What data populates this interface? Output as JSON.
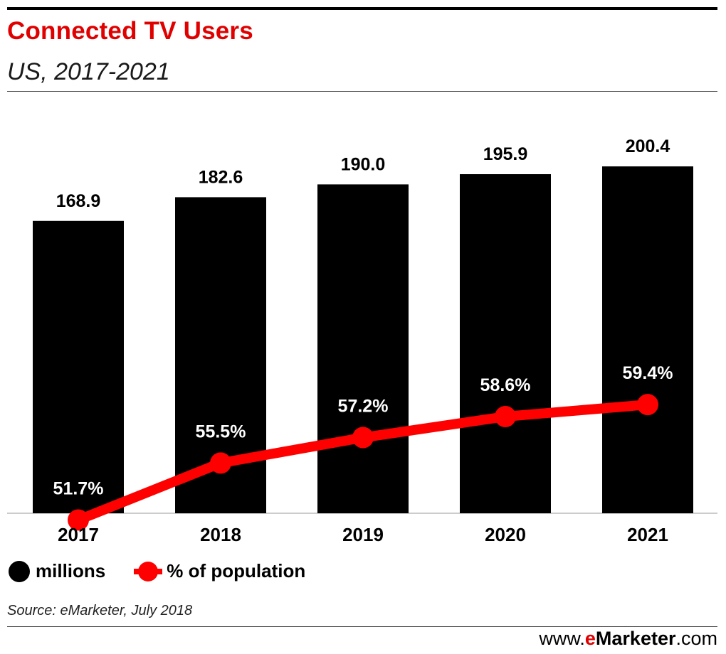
{
  "header": {
    "title": "Connected TV Users",
    "subtitle": "US, 2017-2021"
  },
  "chart_data": {
    "type": "bar",
    "title": "Connected TV Users",
    "subtitle": "US, 2017-2021",
    "categories": [
      "2017",
      "2018",
      "2019",
      "2020",
      "2021"
    ],
    "series": [
      {
        "name": "millions",
        "type": "bar",
        "color": "#000000",
        "values": [
          168.9,
          182.6,
          190.0,
          195.9,
          200.4
        ],
        "labels": [
          "168.9",
          "182.6",
          "190.0",
          "195.9",
          "200.4"
        ]
      },
      {
        "name": "% of population",
        "type": "line",
        "color": "#ff0000",
        "values": [
          51.7,
          55.5,
          57.2,
          58.6,
          59.4
        ],
        "labels": [
          "51.7%",
          "55.5%",
          "57.2%",
          "58.6%",
          "59.4%"
        ]
      }
    ],
    "ylim": [
      0,
      230
    ],
    "y2lim": [
      47.5,
      66
    ],
    "grid": false,
    "legend": "bottom-left"
  },
  "legend": {
    "bars_label": "millions",
    "line_label": "% of population"
  },
  "footer": {
    "source": "Source: eMarketer, July 2018",
    "brand_prefix": "www.",
    "brand_e": "e",
    "brand_name": "Marketer",
    "brand_suffix": ".com"
  }
}
